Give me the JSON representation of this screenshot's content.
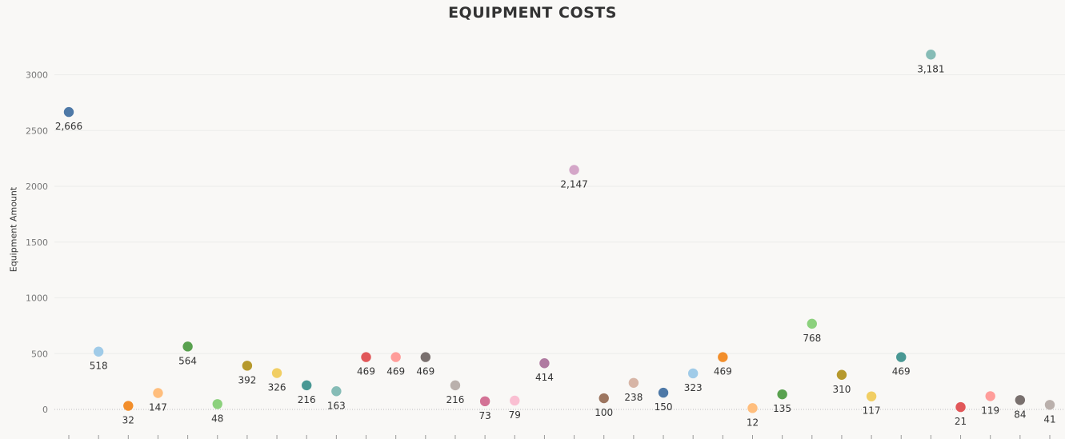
{
  "chart_data": {
    "type": "scatter",
    "title": "EQUIPMENT COSTS",
    "ylabel": "Equipment Amount",
    "xlabel": "",
    "ylim": [
      0,
      3300
    ],
    "yticks": [
      0,
      500,
      1000,
      1500,
      2000,
      2500,
      3000
    ],
    "grid": true,
    "values": [
      2666,
      518,
      32,
      147,
      564,
      48,
      392,
      326,
      216,
      163,
      469,
      469,
      469,
      216,
      73,
      79,
      414,
      2147,
      100,
      238,
      150,
      323,
      469,
      12,
      135,
      768,
      310,
      117,
      469,
      3181,
      21,
      119,
      84,
      41
    ],
    "labels": [
      "2,666",
      "518",
      "32",
      "147",
      "564",
      "48",
      "392",
      "326",
      "216",
      "163",
      "469",
      "469",
      "469",
      "216",
      "73",
      "79",
      "414",
      "2,147",
      "100",
      "238",
      "150",
      "323",
      "469",
      "12",
      "135",
      "768",
      "310",
      "117",
      "469",
      "3,181",
      "21",
      "119",
      "84",
      "41"
    ],
    "colors": [
      "#4e79a7",
      "#a0cbe8",
      "#f28e2b",
      "#ffbe7d",
      "#59a14f",
      "#8cd17d",
      "#b6992d",
      "#f1ce63",
      "#499894",
      "#86bcb6",
      "#e15759",
      "#ff9d9a",
      "#79706e",
      "#bab0ac",
      "#d37295",
      "#fabfd2",
      "#b07aa1",
      "#d4a6c8",
      "#9d7660",
      "#d7b5a6",
      "#4e79a7",
      "#a0cbe8",
      "#f28e2b",
      "#ffbe7d",
      "#59a14f",
      "#8cd17d",
      "#b6992d",
      "#f1ce63",
      "#499894",
      "#86bcb6",
      "#e15759",
      "#ff9d9a",
      "#79706e",
      "#bab0ac"
    ]
  }
}
